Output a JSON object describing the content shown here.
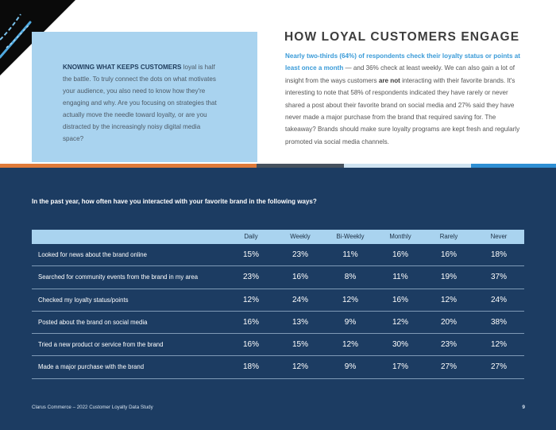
{
  "left_box": {
    "lead": "KNOWING WHAT KEEPS CUSTOMERS",
    "text": " loyal is half the battle. To truly connect the dots on what motivates your audience, you also need to know how they're engaging and why. Are you focusing on strategies that actually move the needle toward loyalty, or are you distracted by the increasingly noisy digital media space?"
  },
  "article": {
    "title": "HOW LOYAL CUSTOMERS ENGAGE",
    "highlight": "Nearly two-thirds (64%) of respondents check their loyalty status or points at least once a month",
    "part1": " — and 36% check at least weekly. We can also gain a lot of insight from the ways customers ",
    "emphasis": "are not",
    "part2": " interacting with their favorite brands. It's interesting to note that 58% of respondents indicated they have rarely or never shared a post about their favorite brand on social media and 27% said they have never made a major purchase from the brand that required saving for. The takeaway? Brands should make sure loyalty programs are kept fresh and regularly promoted via social media channels."
  },
  "colors": {
    "panel": "#1c3c62",
    "light_blue": "#a9d3ef",
    "highlight": "#3a9bd8",
    "stripe": [
      "#e07b39",
      "#46525e",
      "#cfe3f1",
      "#2e8fd4"
    ]
  },
  "survey": {
    "question": "In the past year, how often have you interacted with your favorite brand in the following ways?",
    "columns": [
      "Daily",
      "Weekly",
      "Bi-Weekly",
      "Monthly",
      "Rarely",
      "Never"
    ],
    "rows": [
      {
        "label": "Looked for news about the brand online",
        "values": [
          "15%",
          "23%",
          "11%",
          "16%",
          "16%",
          "18%"
        ]
      },
      {
        "label": "Searched for community events from the brand in my area",
        "values": [
          "23%",
          "16%",
          "8%",
          "11%",
          "19%",
          "37%"
        ]
      },
      {
        "label": "Checked my loyalty status/points",
        "values": [
          "12%",
          "24%",
          "12%",
          "16%",
          "12%",
          "24%"
        ]
      },
      {
        "label": "Posted about the brand on social media",
        "values": [
          "16%",
          "13%",
          "9%",
          "12%",
          "20%",
          "38%"
        ]
      },
      {
        "label": "Tried a new product or service from the brand",
        "values": [
          "16%",
          "15%",
          "12%",
          "30%",
          "23%",
          "12%"
        ]
      },
      {
        "label": "Made a major purchase with the brand",
        "values": [
          "18%",
          "12%",
          "9%",
          "17%",
          "27%",
          "27%"
        ]
      }
    ]
  },
  "footer": {
    "source": "Clarus Commerce – 2022 Customer Loyalty Data Study",
    "page": "9"
  }
}
